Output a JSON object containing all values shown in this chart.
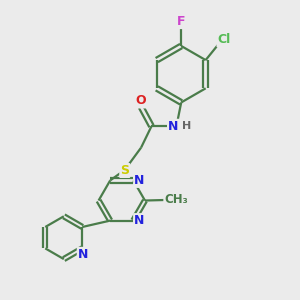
{
  "background_color": "#ebebeb",
  "bond_color": "#4a7c4a",
  "atom_colors": {
    "F": "#cc44cc",
    "Cl": "#55bb55",
    "O": "#dd2222",
    "N": "#2222dd",
    "S": "#cccc00",
    "H": "#666666",
    "C": "#4a7c4a"
  },
  "figsize": [
    3.0,
    3.0
  ],
  "dpi": 100
}
